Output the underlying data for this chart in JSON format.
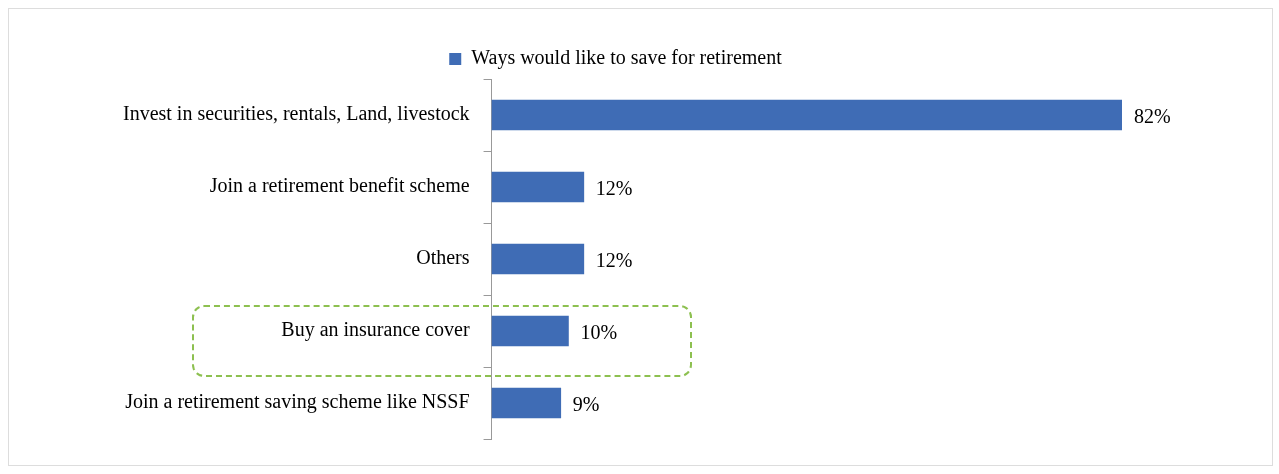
{
  "chart_data": {
    "type": "bar",
    "orientation": "horizontal",
    "categories": [
      "Invest in securities, rentals, Land, livestock",
      "Join a retirement benefit scheme",
      "Others",
      "Buy an insurance cover",
      "Join a retirement saving scheme like NSSF"
    ],
    "series": [
      {
        "name": "Ways would like to save for retirement",
        "color": "#3f6cb5",
        "values": [
          82,
          12,
          12,
          10,
          9
        ],
        "value_labels": [
          "82%",
          "12%",
          "12%",
          "10%",
          "9%"
        ]
      }
    ],
    "legend": "top"
  }
}
